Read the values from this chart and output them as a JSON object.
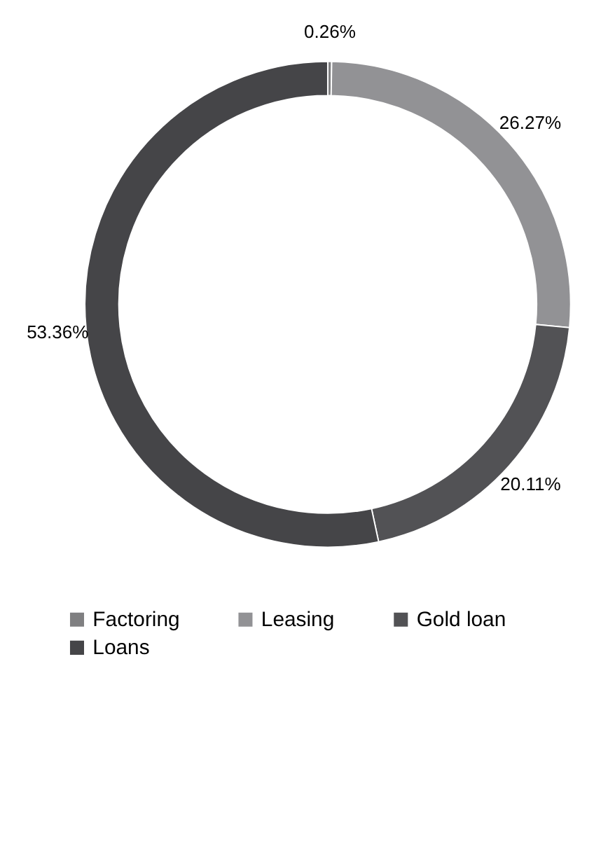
{
  "chart_data": {
    "type": "donut",
    "categories": [
      "Factoring",
      "Leasing",
      "Gold loan",
      "Loans"
    ],
    "values": [
      0.26,
      26.27,
      20.11,
      53.36
    ],
    "value_labels": [
      "0.26%",
      "26.27%",
      "20.11%",
      "53.36%"
    ],
    "colors": [
      "#7f7f81",
      "#929295",
      "#525255",
      "#454548"
    ],
    "legend": "bottom"
  }
}
